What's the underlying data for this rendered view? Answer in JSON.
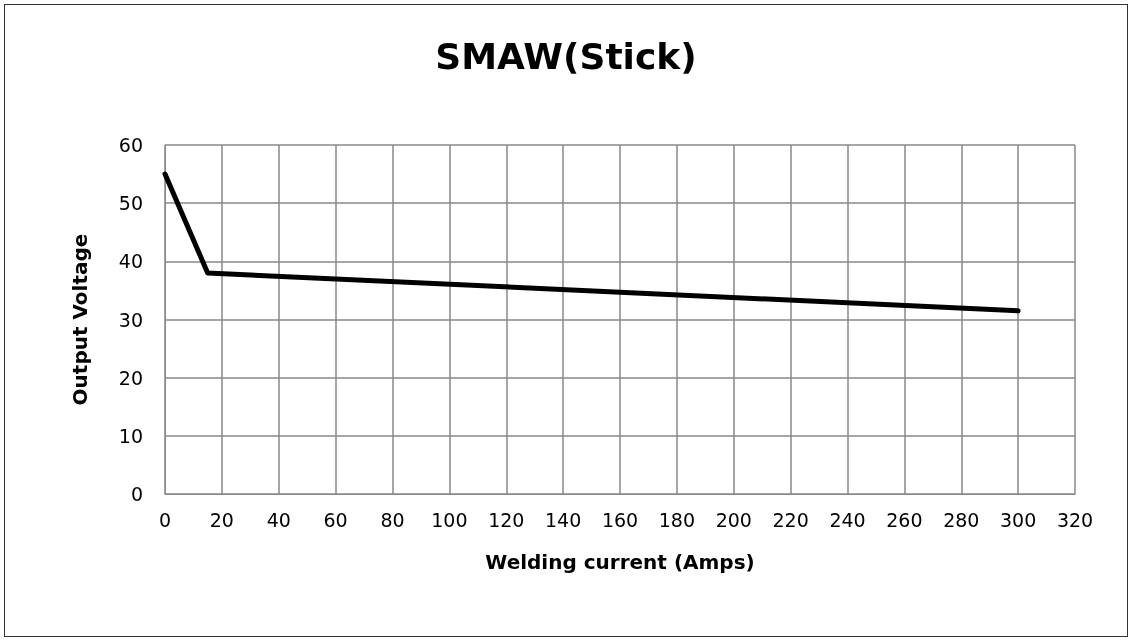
{
  "chart_data": {
    "type": "line",
    "title": "SMAW(Stick)",
    "xlabel": "Welding current (Amps)",
    "ylabel": "Output Voltage",
    "x": [
      0,
      15,
      300
    ],
    "series": [
      {
        "color": "#000000",
        "values": [
          55,
          38,
          31.5
        ]
      }
    ],
    "xlim": [
      0,
      320
    ],
    "xticks": [
      0,
      20,
      40,
      60,
      80,
      100,
      120,
      140,
      160,
      180,
      200,
      220,
      240,
      260,
      280,
      300,
      320
    ],
    "ylim": [
      0,
      60
    ],
    "yticks": [
      0,
      10,
      20,
      30,
      40,
      50,
      60
    ],
    "grid": true,
    "marker": "none",
    "line_style": "solid"
  }
}
